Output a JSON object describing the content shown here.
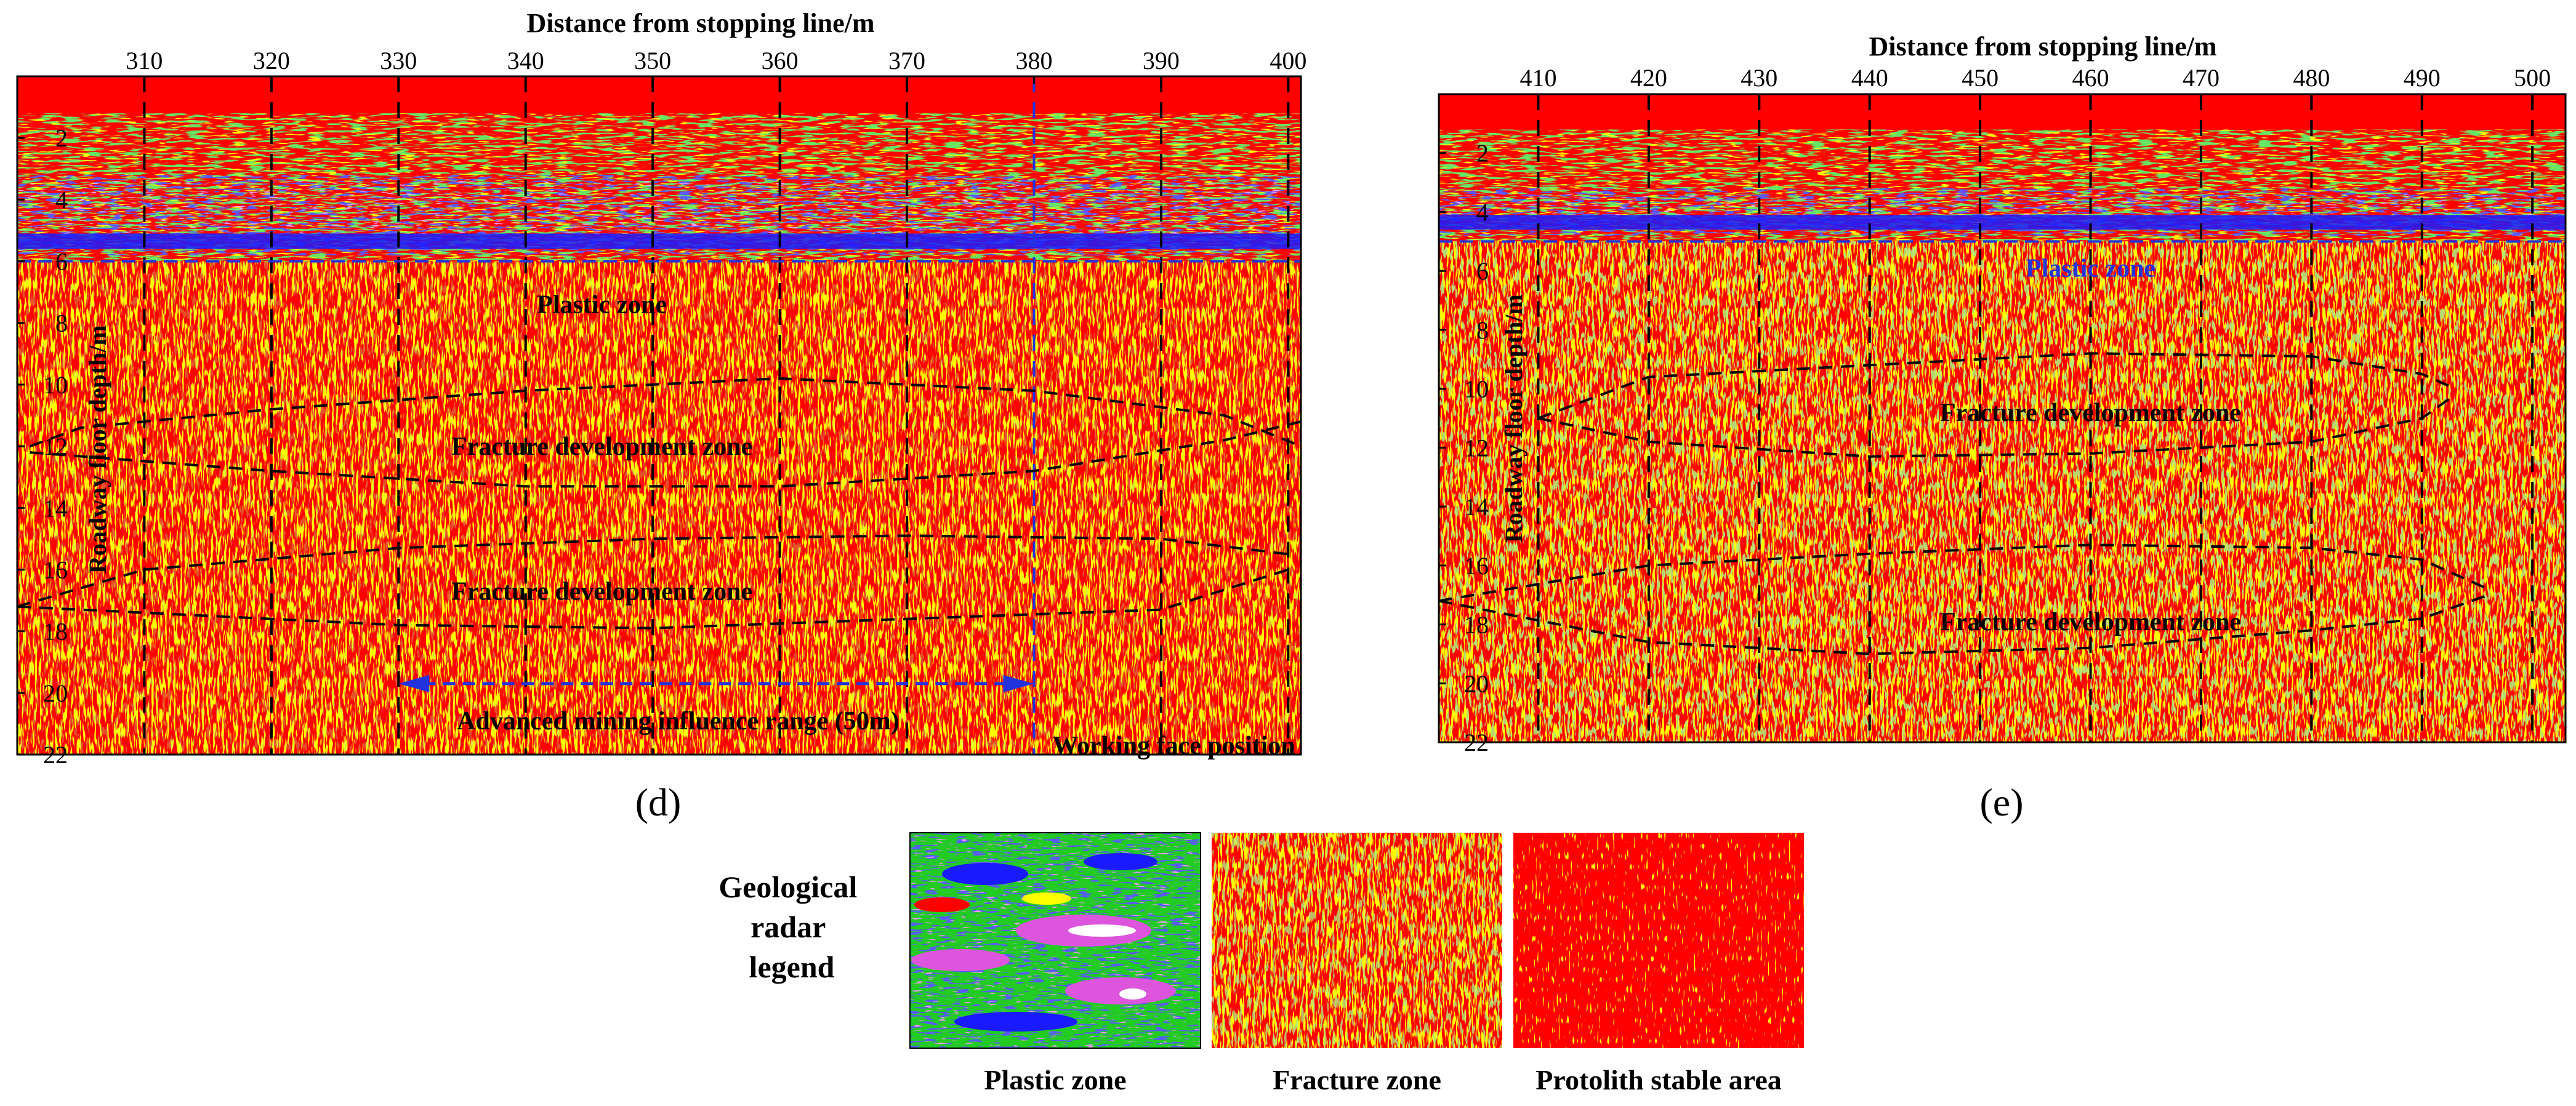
{
  "colors": {
    "background": "#ff0000",
    "fracture_fill_1": "#ffff00",
    "fracture_fill_2": "#7fcf3f",
    "plastic_green": "#22cc22",
    "plastic_blue": "#1a1aff",
    "plastic_magenta": "#dd55dd",
    "boundary_blue": "#2233dd",
    "grid_line": "#000000"
  },
  "chart_data": [
    {
      "type": "heatmap",
      "panel_label": "(d)",
      "title": "Distance from stopping line/m",
      "xlabel": "Distance from stopping line/m",
      "ylabel": "Roadway floor depth/m",
      "xlim": [
        300,
        401
      ],
      "ylim": [
        0,
        22
      ],
      "x_ticks": [
        310,
        320,
        330,
        340,
        350,
        360,
        370,
        380,
        390,
        400
      ],
      "y_ticks": [
        2,
        4,
        6,
        8,
        10,
        12,
        14,
        16,
        18,
        20,
        22
      ],
      "plastic_boundary_depth": 6,
      "working_face_x": 380,
      "influence_range": {
        "x_start": 330,
        "x_end": 380,
        "depth": 19.7,
        "label": "Advanced mining influence range (50m)"
      },
      "fracture_zone_1": {
        "top": [
          [
            301,
            12
          ],
          [
            305,
            11.4
          ],
          [
            320,
            10.8
          ],
          [
            340,
            10.2
          ],
          [
            360,
            9.8
          ],
          [
            380,
            10.2
          ],
          [
            395,
            11
          ],
          [
            401,
            12
          ]
        ],
        "bottom": [
          [
            301,
            12.2
          ],
          [
            320,
            12.8
          ],
          [
            340,
            13.3
          ],
          [
            360,
            13.3
          ],
          [
            380,
            12.8
          ],
          [
            395,
            11.8
          ],
          [
            401,
            11.2
          ]
        ]
      },
      "fracture_zone_2": {
        "top": [
          [
            300,
            17.2
          ],
          [
            310,
            16
          ],
          [
            330,
            15.3
          ],
          [
            350,
            15
          ],
          [
            370,
            14.9
          ],
          [
            390,
            15
          ],
          [
            400,
            15.5
          ]
        ],
        "bottom": [
          [
            300,
            17.2
          ],
          [
            310,
            17.4
          ],
          [
            330,
            17.8
          ],
          [
            350,
            17.9
          ],
          [
            370,
            17.6
          ],
          [
            390,
            17.3
          ],
          [
            400,
            16
          ]
        ]
      },
      "annotations": [
        {
          "text": "Plastic zone",
          "x": 346,
          "y": 7.4
        },
        {
          "text": "Fracture development zone",
          "x": 346,
          "y": 12.0
        },
        {
          "text": "Fracture development zone",
          "x": 346,
          "y": 16.7
        },
        {
          "text": "Advanced mining influence range (50m)",
          "x": 352,
          "y": 20.9
        },
        {
          "text": "Working face position",
          "x": 391,
          "y": 21.7
        }
      ]
    },
    {
      "type": "heatmap",
      "panel_label": "(e)",
      "title": "Distance from stopping line/m",
      "xlabel": "Distance from stopping line/m",
      "ylabel": "Roadway floor depth/m",
      "xlim": [
        401,
        503
      ],
      "ylim": [
        0,
        22
      ],
      "x_ticks": [
        410,
        420,
        430,
        440,
        450,
        460,
        470,
        480,
        490,
        500
      ],
      "y_ticks": [
        2,
        4,
        6,
        8,
        10,
        12,
        14,
        16,
        18,
        20,
        22
      ],
      "plastic_boundary_depth": 5,
      "fracture_zone_1": {
        "top": [
          [
            410,
            11
          ],
          [
            420,
            9.6
          ],
          [
            440,
            9.2
          ],
          [
            460,
            8.8
          ],
          [
            480,
            8.9
          ],
          [
            490,
            9.5
          ],
          [
            493,
            10
          ]
        ],
        "bottom": [
          [
            410,
            11
          ],
          [
            420,
            11.8
          ],
          [
            440,
            12.3
          ],
          [
            460,
            12.2
          ],
          [
            480,
            11.8
          ],
          [
            490,
            11
          ],
          [
            493,
            10.2
          ]
        ]
      },
      "fracture_zone_2": {
        "top": [
          [
            401,
            17.2
          ],
          [
            420,
            16
          ],
          [
            440,
            15.6
          ],
          [
            460,
            15.3
          ],
          [
            480,
            15.4
          ],
          [
            490,
            15.8
          ],
          [
            496,
            16.8
          ]
        ],
        "bottom": [
          [
            401,
            17.2
          ],
          [
            420,
            18.6
          ],
          [
            440,
            19
          ],
          [
            460,
            18.8
          ],
          [
            480,
            18.2
          ],
          [
            490,
            17.8
          ],
          [
            496,
            17
          ]
        ]
      },
      "annotations": [
        {
          "text": "Plastic zone",
          "x": 460,
          "y": 5.9
        },
        {
          "text": "Fracture development zone",
          "x": 460,
          "y": 10.8
        },
        {
          "text": "Fracture development zone",
          "x": 460,
          "y": 17.9
        }
      ]
    }
  ],
  "legend": {
    "title": "Geological radar legend",
    "title_lines": [
      "Geological",
      "radar",
      "legend"
    ],
    "items": [
      {
        "key": "plastic",
        "label": "Plastic zone"
      },
      {
        "key": "fracture",
        "label": "Fracture zone"
      },
      {
        "key": "protolith",
        "label": "Protolith stable area"
      }
    ]
  }
}
